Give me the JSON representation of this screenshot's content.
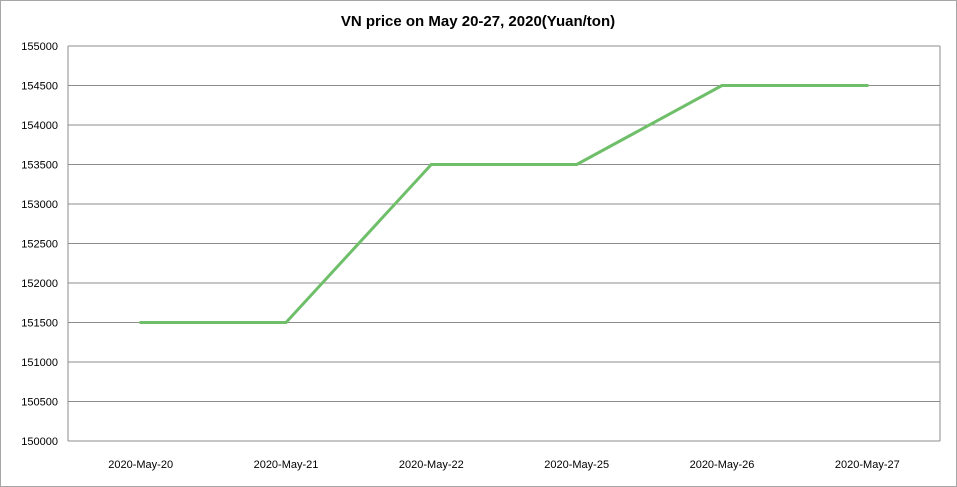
{
  "chart_data": {
    "type": "line",
    "title": "VN price on May 20-27, 2020(Yuan/ton)",
    "xlabel": "",
    "ylabel": "",
    "categories": [
      "2020-May-20",
      "2020-May-21",
      "2020-May-22",
      "2020-May-25",
      "2020-May-26",
      "2020-May-27"
    ],
    "series": [
      {
        "values": [
          151500,
          151500,
          153500,
          153500,
          154500,
          154500
        ],
        "color": "#6fbf6a"
      }
    ],
    "ylim": [
      150000,
      155000
    ],
    "yticks": [
      "150000",
      "150500",
      "151000",
      "151500",
      "152000",
      "152500",
      "153000",
      "153500",
      "154000",
      "154500",
      "155000"
    ],
    "grid": true,
    "legend": "none"
  }
}
